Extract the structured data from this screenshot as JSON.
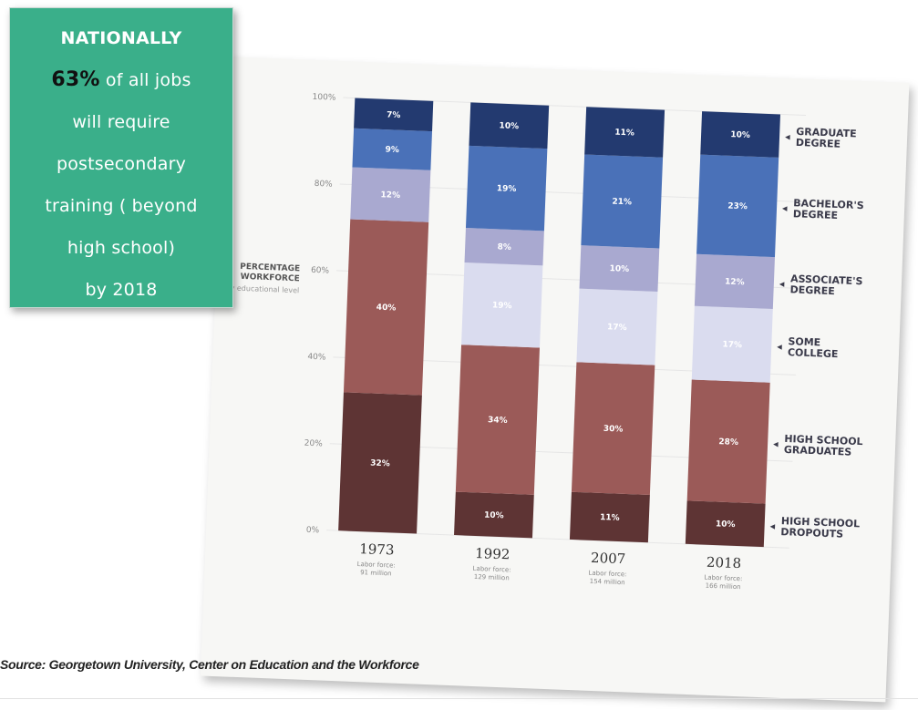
{
  "callout": {
    "line1": "NATIONALLY",
    "line2_pct": "63%",
    "line2_rest": " of all jobs",
    "line3": "will require",
    "line4": "postsecondary",
    "line5": "training ( beyond",
    "line6": "high school)",
    "line7": "by 2018"
  },
  "source": "Source: Georgetown University, Center on Education and the Workforce",
  "chart_data": {
    "type": "bar",
    "stacked": true,
    "ylabel": "PERCENTAGE WORKFORCE",
    "ylabel_sub": "y educational level",
    "ylim": [
      0,
      100
    ],
    "yticks": [
      "0%",
      "20%",
      "40%",
      "60%",
      "80%",
      "100%"
    ],
    "categories": [
      "1973",
      "1992",
      "2007",
      "2018"
    ],
    "labor_force": [
      "Labor force: 91 million",
      "Labor force: 129 million",
      "Labor force: 154 million",
      "Labor force: 166 million"
    ],
    "series": [
      {
        "name": "HIGH SCHOOL DROPOUTS",
        "color": "#5e3434",
        "values": [
          32,
          10,
          11,
          10
        ]
      },
      {
        "name": "HIGH SCHOOL GRADUATES",
        "color": "#9b5a58",
        "values": [
          40,
          34,
          30,
          28
        ]
      },
      {
        "name": "SOME COLLEGE",
        "color": "#dadcef",
        "values": [
          null,
          19,
          17,
          17
        ]
      },
      {
        "name": "ASSOCIATE'S DEGREE",
        "color": "#a9a9d0",
        "values": [
          12,
          8,
          10,
          12
        ]
      },
      {
        "name": "BACHELOR'S DEGREE",
        "color": "#4a71b8",
        "values": [
          9,
          19,
          21,
          23
        ]
      },
      {
        "name": "GRADUATE DEGREE",
        "color": "#233a70",
        "values": [
          7,
          10,
          11,
          10
        ]
      }
    ],
    "legend_position": "right"
  }
}
